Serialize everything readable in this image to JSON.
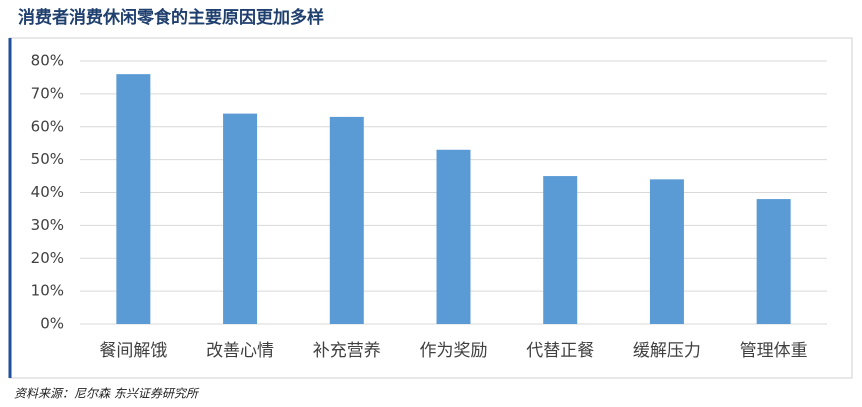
{
  "chart_data": {
    "type": "bar",
    "title": "消费者消费休闲零食的主要原因更加多样",
    "categories": [
      "餐间解饿",
      "改善心情",
      "补充营养",
      "作为奖励",
      "代替正餐",
      "缓解压力",
      "管理体重"
    ],
    "values": [
      76,
      64,
      63,
      53,
      45,
      44,
      38
    ],
    "color": "#5b9bd5",
    "ylim": [
      0,
      80
    ],
    "yticks": [
      {
        "value": 0,
        "label": "0%"
      },
      {
        "value": 10,
        "label": "10%"
      },
      {
        "value": 20,
        "label": "20%"
      },
      {
        "value": 30,
        "label": "30%"
      },
      {
        "value": 40,
        "label": "40%"
      },
      {
        "value": 50,
        "label": "50%"
      },
      {
        "value": 60,
        "label": "60%"
      },
      {
        "value": 70,
        "label": "70%"
      },
      {
        "value": 80,
        "label": "80%"
      }
    ],
    "grid": true,
    "source": "资料来源：尼尔森 东兴证券研究所"
  }
}
